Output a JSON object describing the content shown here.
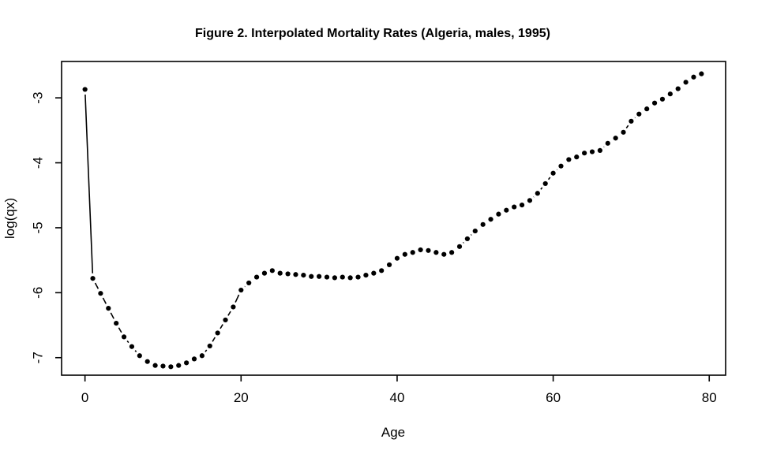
{
  "page": {
    "background": "#ffffff",
    "foreground": "#000000"
  },
  "chart_data": {
    "type": "scatter",
    "title": "Figure 2. Interpolated Mortality Rates (Algeria, males, 1995)",
    "xlabel": "Age",
    "ylabel": "log(qx)",
    "x_ticks": [
      0,
      20,
      40,
      60,
      80
    ],
    "y_ticks": [
      -7,
      -6,
      -5,
      -4,
      -3
    ],
    "xlim": [
      -3.0,
      82.1
    ],
    "ylim": [
      -7.27,
      -2.44
    ],
    "grid": false,
    "legend": null,
    "marker": "filled-circle",
    "marker_color": "#000000",
    "line_color": "#000000",
    "plot_style": "R base type='b': points joined by line segments with gaps around markers",
    "series": [
      {
        "name": "log(qx), Algeria males 1995",
        "x": [
          0,
          1,
          2,
          3,
          4,
          5,
          6,
          7,
          8,
          9,
          10,
          11,
          12,
          13,
          14,
          15,
          16,
          17,
          18,
          19,
          20,
          21,
          22,
          23,
          24,
          25,
          26,
          27,
          28,
          29,
          30,
          31,
          32,
          33,
          34,
          35,
          36,
          37,
          38,
          39,
          40,
          41,
          42,
          43,
          44,
          45,
          46,
          47,
          48,
          49,
          50,
          51,
          52,
          53,
          54,
          55,
          56,
          57,
          58,
          59,
          60,
          61,
          62,
          63,
          64,
          65,
          66,
          67,
          68,
          69,
          70,
          71,
          72,
          73,
          74,
          75,
          76,
          77,
          78,
          79
        ],
        "y": [
          -2.87,
          -5.78,
          -6.01,
          -6.24,
          -6.47,
          -6.68,
          -6.83,
          -6.97,
          -7.06,
          -7.12,
          -7.13,
          -7.14,
          -7.12,
          -7.08,
          -7.02,
          -6.97,
          -6.82,
          -6.62,
          -6.42,
          -6.22,
          -5.96,
          -5.85,
          -5.76,
          -5.7,
          -5.66,
          -5.7,
          -5.71,
          -5.72,
          -5.73,
          -5.75,
          -5.75,
          -5.76,
          -5.77,
          -5.76,
          -5.77,
          -5.76,
          -5.73,
          -5.7,
          -5.66,
          -5.57,
          -5.47,
          -5.41,
          -5.38,
          -5.34,
          -5.35,
          -5.38,
          -5.41,
          -5.38,
          -5.29,
          -5.17,
          -5.05,
          -4.95,
          -4.87,
          -4.79,
          -4.73,
          -4.68,
          -4.65,
          -4.58,
          -4.47,
          -4.32,
          -4.16,
          -4.05,
          -3.95,
          -3.91,
          -3.85,
          -3.83,
          -3.81,
          -3.7,
          -3.62,
          -3.53,
          -3.36,
          -3.25,
          -3.17,
          -3.08,
          -3.02,
          -2.94,
          -2.86,
          -2.76,
          -2.68,
          -2.63
        ]
      }
    ]
  }
}
